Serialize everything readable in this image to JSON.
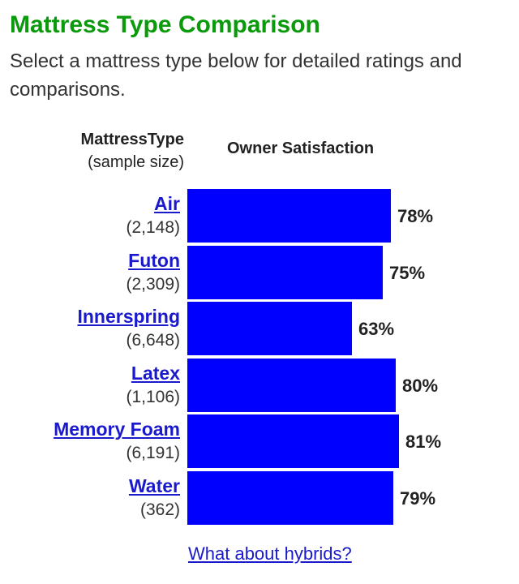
{
  "header": {
    "title": "Mattress Type Comparison",
    "subtitle": "Select a mattress type below for detailed ratings and comparisons."
  },
  "columns": {
    "type_heading": "MattressType",
    "type_subheading": "(sample size)",
    "satisfaction_heading": "Owner Satisfaction"
  },
  "colors": {
    "title": "#0b9a0b",
    "bar": "#0000ff",
    "link": "#1a1acc"
  },
  "chart_data": {
    "type": "bar",
    "orientation": "horizontal",
    "categories": [
      "Air",
      "Futon",
      "Innerspring",
      "Latex",
      "Memory Foam",
      "Water"
    ],
    "sample_sizes": [
      "(2,148)",
      "(2,309)",
      "(6,648)",
      "(1,106)",
      "(6,191)",
      "(362)"
    ],
    "values": [
      78,
      75,
      63,
      80,
      81,
      79
    ],
    "value_labels": [
      "78%",
      "75%",
      "63%",
      "80%",
      "81%",
      "79%"
    ],
    "unit": "%",
    "xlim": [
      0,
      100
    ],
    "grid": false,
    "legend": "none"
  },
  "footer": {
    "link_text": "What about hybrids?"
  }
}
